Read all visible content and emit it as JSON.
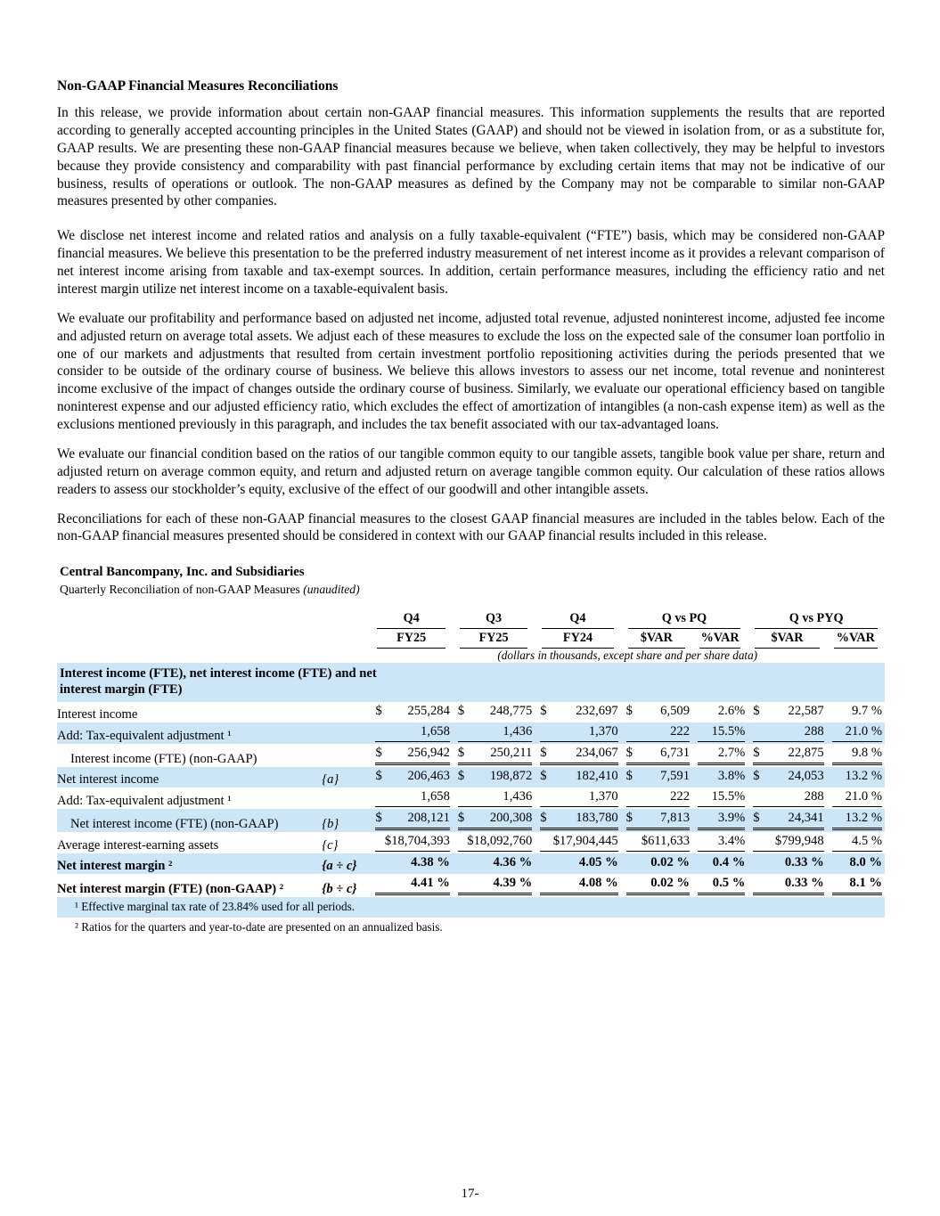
{
  "colors": {
    "row_shade": "#cce6f7"
  },
  "page": {
    "number": "17-"
  },
  "document": {
    "title": "Non-GAAP Financial Measures Reconciliations",
    "paragraphs": [
      "In this release, we provide information about certain non-GAAP financial measures. This information supplements the results that are reported according to generally accepted accounting principles in the United States (GAAP) and should not be viewed in isolation from, or as a substitute for, GAAP results. We are presenting these non-GAAP financial measures because we believe, when taken collectively, they may be helpful to investors because they provide consistency and comparability with past financial performance by excluding certain items that may not be indicative of our business, results of operations or outlook. The non-GAAP measures as defined by the Company may not be comparable to similar non-GAAP measures presented by other companies.",
      "We disclose net interest income and related ratios and analysis on a fully taxable-equivalent (“FTE”) basis, which may be considered non-GAAP financial measures. We believe this presentation to be the preferred industry measurement of net interest income as it provides a relevant comparison of net interest income arising from taxable and tax-exempt sources. In addition, certain performance measures, including the efficiency ratio and net interest margin utilize net interest income on a taxable-equivalent basis.",
      "We evaluate our profitability and performance based on adjusted net income, adjusted total revenue, adjusted noninterest income, adjusted fee income and adjusted return on average total assets. We adjust each of these measures to exclude the loss on the expected sale of the consumer loan portfolio in one of our markets and adjustments that resulted from certain investment portfolio repositioning activities during the periods presented that we consider to be outside of the ordinary course of business. We believe this allows investors to assess our net income, total revenue and noninterest income exclusive of the impact of changes outside the ordinary course of business. Similarly, we evaluate our operational efficiency based on tangible noninterest expense and our adjusted efficiency ratio, which excludes the effect of amortization of intangibles (a non-cash expense item) as well as the exclusions mentioned previously in this paragraph, and includes the tax benefit associated with our tax-advantaged loans.",
      "We evaluate our financial condition based on the ratios of our tangible common equity to our tangible assets, tangible book value per share, return and adjusted return on average common equity, and return and adjusted return on average tangible common equity. Our calculation of these ratios allows readers to assess our stockholder’s equity, exclusive of the effect of our goodwill and other intangible assets.",
      "Reconciliations for each of these non-GAAP financial measures to the closest GAAP financial measures are included in the tables below. Each of the non-GAAP financial measures presented should be considered in context with our GAAP financial results included in this release."
    ]
  },
  "table": {
    "company": "Central Bancompany, Inc. and Subsidiaries",
    "subtitle": "Quarterly Reconciliation of non-GAAP Measures",
    "subtitle_note": "(unaudited)",
    "header": {
      "top": [
        "Q4",
        "Q3",
        "Q4",
        "Q vs PQ",
        "Q vs PYQ"
      ],
      "sub": [
        "FY25",
        "FY25",
        "FY24",
        "$VAR",
        "%VAR",
        "$VAR",
        "%VAR"
      ],
      "units_note": "(dollars in thousands, except share and per share data)"
    },
    "section_header": "Interest income (FTE), net interest income (FTE) and net interest margin (FTE)",
    "rows": [
      {
        "label": "Interest income",
        "ref": "",
        "shaded": false,
        "bold": false,
        "indent": false,
        "rule": 0,
        "cells": [
          {
            "d": "$",
            "v": "255,284"
          },
          {
            "d": "$",
            "v": "248,775"
          },
          {
            "d": "$",
            "v": "232,697"
          },
          {
            "d": "$",
            "v": "6,509"
          },
          {
            "v": "2.6%"
          },
          {
            "d": "$",
            "v": "22,587"
          },
          {
            "v": "9.7 %"
          }
        ]
      },
      {
        "label": "Add: Tax-equivalent adjustment ¹",
        "ref": "",
        "shaded": true,
        "bold": false,
        "indent": false,
        "rule": 1,
        "cells": [
          {
            "v": "1,658"
          },
          {
            "v": "1,436"
          },
          {
            "v": "1,370"
          },
          {
            "v": "222"
          },
          {
            "v": "15.5%"
          },
          {
            "v": "288"
          },
          {
            "v": "21.0 %"
          }
        ]
      },
      {
        "label": "Interest income (FTE) (non-GAAP)",
        "ref": "",
        "shaded": false,
        "bold": false,
        "indent": true,
        "rule": 2,
        "cells": [
          {
            "d": "$",
            "v": "256,942"
          },
          {
            "d": "$",
            "v": "250,211"
          },
          {
            "d": "$",
            "v": "234,067"
          },
          {
            "d": "$",
            "v": "6,731"
          },
          {
            "v": "2.7%"
          },
          {
            "d": "$",
            "v": "22,875"
          },
          {
            "v": "9.8 %"
          }
        ]
      },
      {
        "label": "Net interest income",
        "ref": "{a}",
        "shaded": true,
        "bold": false,
        "indent": false,
        "rule": 0,
        "cells": [
          {
            "d": "$",
            "v": "206,463"
          },
          {
            "d": "$",
            "v": "198,872"
          },
          {
            "d": "$",
            "v": "182,410"
          },
          {
            "d": "$",
            "v": "7,591"
          },
          {
            "v": "3.8%"
          },
          {
            "d": "$",
            "v": "24,053"
          },
          {
            "v": "13.2 %"
          }
        ]
      },
      {
        "label": "Add: Tax-equivalent adjustment ¹",
        "ref": "",
        "shaded": false,
        "bold": false,
        "indent": false,
        "rule": 1,
        "cells": [
          {
            "v": "1,658"
          },
          {
            "v": "1,436"
          },
          {
            "v": "1,370"
          },
          {
            "v": "222"
          },
          {
            "v": "15.5%"
          },
          {
            "v": "288"
          },
          {
            "v": "21.0 %"
          }
        ]
      },
      {
        "label": "Net interest income (FTE) (non-GAAP)",
        "ref": "{b}",
        "shaded": true,
        "bold": false,
        "indent": true,
        "rule": 2,
        "cells": [
          {
            "d": "$",
            "v": "208,121"
          },
          {
            "d": "$",
            "v": "200,308"
          },
          {
            "d": "$",
            "v": "183,780"
          },
          {
            "d": "$",
            "v": "7,813"
          },
          {
            "v": "3.9%"
          },
          {
            "d": "$",
            "v": "24,341"
          },
          {
            "v": "13.2 %"
          }
        ]
      },
      {
        "label": "Average interest-earning assets",
        "ref": "{c}",
        "shaded": false,
        "bold": false,
        "indent": false,
        "rule": 1,
        "cells": [
          {
            "v": "$18,704,393"
          },
          {
            "v": "$18,092,760"
          },
          {
            "v": "$17,904,445"
          },
          {
            "v": "$611,633"
          },
          {
            "v": "3.4%"
          },
          {
            "v": "$799,948"
          },
          {
            "v": "4.5 %"
          }
        ]
      },
      {
        "label": "Net interest margin ²",
        "ref": "{a ÷ c}",
        "shaded": true,
        "bold": true,
        "indent": false,
        "rule": 0,
        "cells": [
          {
            "v": "4.38 %"
          },
          {
            "v": "4.36 %"
          },
          {
            "v": "4.05 %"
          },
          {
            "v": "0.02 %"
          },
          {
            "v": "0.4 %"
          },
          {
            "v": "0.33 %"
          },
          {
            "v": "8.0 %"
          }
        ]
      },
      {
        "label": "Net interest margin (FTE) (non-GAAP) ²",
        "ref": "{b ÷ c}",
        "shaded": false,
        "bold": true,
        "indent": false,
        "rule": 2,
        "cells": [
          {
            "v": "4.41 %"
          },
          {
            "v": "4.39 %"
          },
          {
            "v": "4.08 %"
          },
          {
            "v": "0.02 %"
          },
          {
            "v": "0.5 %"
          },
          {
            "v": "0.33 %"
          },
          {
            "v": "8.1 %"
          }
        ]
      }
    ],
    "footnotes": [
      "¹ Effective marginal tax rate of 23.84% used for all periods.",
      "² Ratios for the quarters and year-to-date are presented on an annualized basis."
    ]
  }
}
